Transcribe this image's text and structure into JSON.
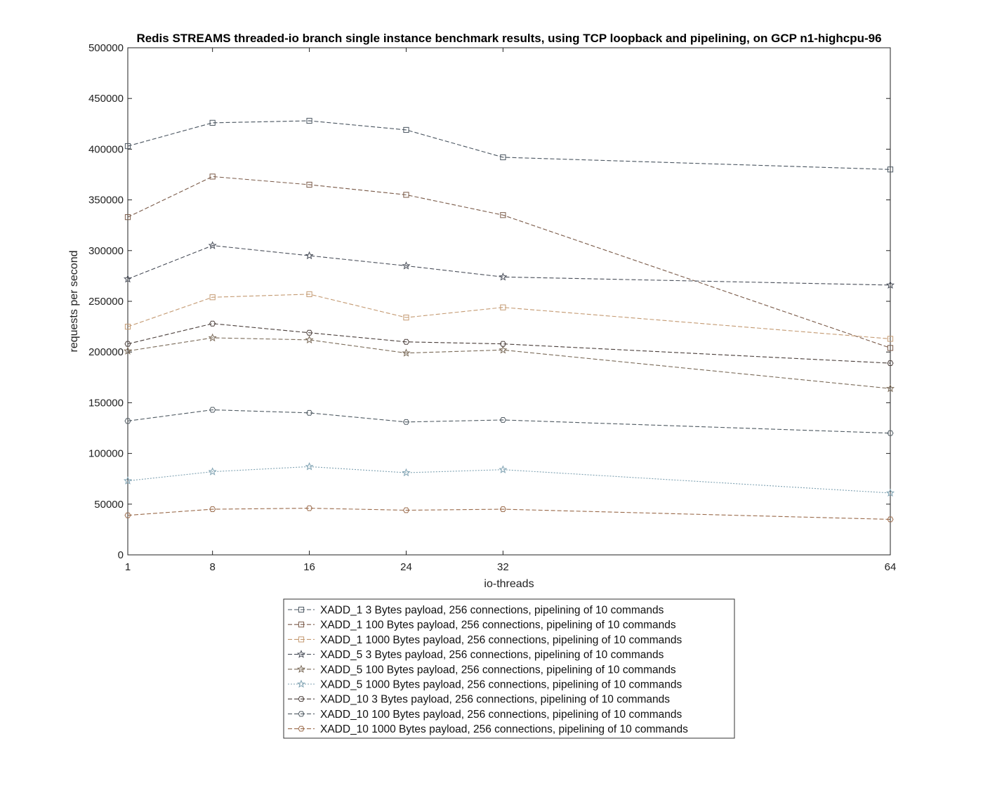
{
  "chart_data": {
    "type": "line",
    "title": "Redis STREAMS threaded-io branch single instance benchmark results, using TCP loopback and pipelining, on GCP n1-highcpu-96",
    "xlabel": "io-threads",
    "ylabel": "requests per second",
    "x": [
      1,
      8,
      16,
      24,
      32,
      64
    ],
    "x_tick_labels": [
      "1",
      "8",
      "16",
      "24",
      "32",
      "64"
    ],
    "y_ticks": [
      0,
      50000,
      100000,
      150000,
      200000,
      250000,
      300000,
      350000,
      400000,
      450000,
      500000
    ],
    "y_tick_labels": [
      "0",
      "50000",
      "100000",
      "150000",
      "200000",
      "250000",
      "300000",
      "350000",
      "400000",
      "450000",
      "500000"
    ],
    "xlim": [
      1,
      64
    ],
    "ylim": [
      0,
      500000
    ],
    "grid": false,
    "legend_position": "bottom-outside",
    "series": [
      {
        "name": "XADD_1 3 Bytes payload, 256 connections, pipelining of 10 commands",
        "marker": "square",
        "color": "#4a5560",
        "dash": "dashed",
        "values": [
          403000,
          426000,
          428000,
          419000,
          392000,
          380000
        ]
      },
      {
        "name": "XADD_1 100 Bytes payload, 256 connections, pipelining of 10 commands",
        "marker": "square",
        "color": "#7a5a48",
        "dash": "dashed",
        "values": [
          333000,
          373000,
          365000,
          355000,
          335000,
          204000
        ]
      },
      {
        "name": "XADD_1 1000 Bytes payload, 256 connections, pipelining of 10 commands",
        "marker": "square",
        "color": "#c49a72",
        "dash": "dashed",
        "values": [
          225000,
          254000,
          257000,
          234000,
          244000,
          213000
        ]
      },
      {
        "name": "XADD_5 3 Bytes payload, 256 connections, pipelining of 10 commands",
        "marker": "star",
        "color": "#4a4f5a",
        "dash": "dashed",
        "values": [
          272000,
          305000,
          295000,
          285000,
          274000,
          266000
        ]
      },
      {
        "name": "XADD_5 100 Bytes payload, 256 connections, pipelining of 10 commands",
        "marker": "star",
        "color": "#7a6a58",
        "dash": "dashed",
        "values": [
          201000,
          214000,
          212000,
          199000,
          202000,
          164000
        ]
      },
      {
        "name": "XADD_5 1000 Bytes payload, 256 connections, pipelining of 10 commands",
        "marker": "star",
        "color": "#7fa2b2",
        "dash": "dotted",
        "values": [
          73000,
          82000,
          87000,
          81000,
          84000,
          61000
        ]
      },
      {
        "name": "XADD_10 3 Bytes payload, 256 connections, pipelining of 10 commands",
        "marker": "hexagon",
        "color": "#4a3e3a",
        "dash": "dashed",
        "values": [
          208000,
          228000,
          219000,
          210000,
          208000,
          189000
        ]
      },
      {
        "name": "XADD_10 100 Bytes payload, 256 connections, pipelining of 10 commands",
        "marker": "hexagon",
        "color": "#4f5a62",
        "dash": "dashed",
        "values": [
          132000,
          143000,
          140000,
          131000,
          133000,
          120000
        ]
      },
      {
        "name": "XADD_10 1000 Bytes payload, 256 connections, pipelining of 10 commands",
        "marker": "hexagon",
        "color": "#9a6a4a",
        "dash": "dashed",
        "values": [
          39000,
          45000,
          46000,
          44000,
          45000,
          35000
        ]
      }
    ]
  }
}
